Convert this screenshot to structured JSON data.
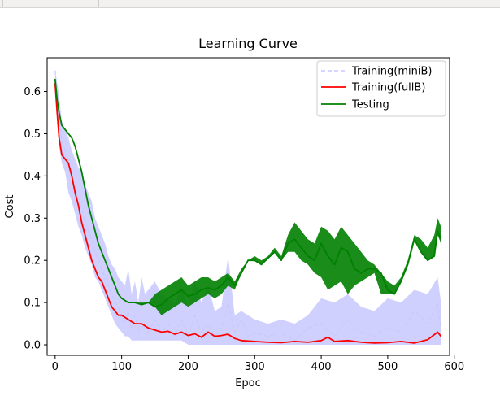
{
  "chart_data": {
    "type": "line",
    "title": "Learning Curve",
    "xlabel": "Epoc",
    "ylabel": "Cost",
    "xlim": [
      -12,
      593
    ],
    "ylim": [
      -0.025,
      0.68
    ],
    "xticks": [
      0,
      100,
      200,
      300,
      400,
      500,
      600
    ],
    "yticks": [
      0.0,
      0.1,
      0.2,
      0.3,
      0.4,
      0.5,
      0.6
    ],
    "xtick_labels": [
      "0",
      "100",
      "200",
      "300",
      "400",
      "500",
      "600"
    ],
    "ytick_labels": [
      "0.0",
      "0.1",
      "0.2",
      "0.3",
      "0.4",
      "0.5",
      "0.6"
    ],
    "grid": false,
    "legend_position": "top-right",
    "series": [
      {
        "name": "Training(miniB)",
        "color": "#c8c8ff",
        "style": "dashed",
        "x": [
          0,
          3,
          6,
          10,
          15,
          20,
          25,
          30,
          35,
          40,
          45,
          50,
          55,
          60,
          65,
          70,
          75,
          80,
          85,
          90,
          95,
          100,
          105,
          110,
          115,
          120,
          125,
          130,
          135,
          140,
          150,
          160,
          170,
          180,
          190,
          200,
          210,
          220,
          230,
          240,
          250,
          260,
          270,
          280,
          290,
          300,
          320,
          340,
          360,
          380,
          400,
          420,
          440,
          460,
          480,
          500,
          520,
          540,
          560,
          575,
          580
        ],
        "values": [
          0.65,
          0.6,
          0.55,
          0.48,
          0.46,
          0.44,
          0.4,
          0.37,
          0.35,
          0.32,
          0.29,
          0.27,
          0.25,
          0.22,
          0.2,
          0.18,
          0.16,
          0.14,
          0.12,
          0.1,
          0.09,
          0.06,
          0.05,
          0.08,
          0.04,
          0.07,
          0.03,
          0.05,
          0.04,
          0.03,
          0.06,
          0.03,
          0.05,
          0.02,
          0.06,
          0.02,
          0.07,
          0.03,
          0.05,
          0.02,
          0.04,
          0.1,
          0.03,
          0.06,
          0.02,
          0.03,
          0.02,
          0.03,
          0.01,
          0.04,
          0.05,
          0.02,
          0.06,
          0.03,
          0.02,
          0.04,
          0.03,
          0.08,
          0.05,
          0.1,
          0.04
        ],
        "band_lower": [
          0.6,
          0.54,
          0.47,
          0.43,
          0.41,
          0.36,
          0.34,
          0.31,
          0.28,
          0.26,
          0.23,
          0.21,
          0.19,
          0.16,
          0.15,
          0.13,
          0.11,
          0.09,
          0.07,
          0.05,
          0.04,
          0.03,
          0.02,
          0.02,
          0.01,
          0.01,
          0.01,
          0.01,
          0.01,
          0.01,
          0.01,
          0.01,
          0.01,
          0.01,
          0.01,
          0.0,
          0.0,
          0.0,
          0.0,
          0.0,
          0.0,
          0.0,
          0.0,
          0.0,
          0.0,
          0.0,
          0.0,
          0.0,
          0.0,
          0.0,
          0.0,
          0.0,
          0.0,
          0.0,
          0.0,
          0.0,
          0.0,
          0.0,
          0.0,
          0.0,
          0.0
        ],
        "band_upper": [
          0.65,
          0.62,
          0.59,
          0.53,
          0.51,
          0.49,
          0.46,
          0.44,
          0.42,
          0.41,
          0.38,
          0.36,
          0.34,
          0.3,
          0.28,
          0.26,
          0.24,
          0.21,
          0.19,
          0.18,
          0.16,
          0.15,
          0.14,
          0.18,
          0.12,
          0.15,
          0.1,
          0.16,
          0.12,
          0.13,
          0.15,
          0.12,
          0.11,
          0.1,
          0.13,
          0.09,
          0.15,
          0.1,
          0.14,
          0.08,
          0.09,
          0.21,
          0.07,
          0.08,
          0.07,
          0.06,
          0.05,
          0.06,
          0.05,
          0.07,
          0.11,
          0.1,
          0.12,
          0.09,
          0.08,
          0.11,
          0.1,
          0.13,
          0.12,
          0.16,
          0.1
        ]
      },
      {
        "name": "Training(fullB)",
        "color": "#ff0000",
        "style": "solid",
        "x": [
          0,
          3,
          6,
          10,
          15,
          20,
          25,
          30,
          35,
          40,
          45,
          50,
          55,
          60,
          65,
          70,
          75,
          80,
          85,
          90,
          95,
          100,
          110,
          120,
          130,
          140,
          150,
          160,
          170,
          180,
          190,
          200,
          210,
          220,
          230,
          240,
          250,
          260,
          270,
          280,
          300,
          320,
          340,
          360,
          380,
          400,
          410,
          420,
          440,
          460,
          480,
          500,
          520,
          540,
          560,
          575,
          580
        ],
        "values": [
          0.62,
          0.55,
          0.49,
          0.45,
          0.44,
          0.43,
          0.4,
          0.36,
          0.33,
          0.29,
          0.26,
          0.23,
          0.2,
          0.18,
          0.16,
          0.15,
          0.13,
          0.11,
          0.09,
          0.08,
          0.07,
          0.07,
          0.06,
          0.05,
          0.05,
          0.04,
          0.035,
          0.03,
          0.032,
          0.025,
          0.03,
          0.022,
          0.026,
          0.018,
          0.03,
          0.02,
          0.022,
          0.025,
          0.015,
          0.01,
          0.008,
          0.006,
          0.005,
          0.008,
          0.006,
          0.01,
          0.018,
          0.008,
          0.01,
          0.006,
          0.004,
          0.005,
          0.008,
          0.004,
          0.012,
          0.03,
          0.02
        ]
      },
      {
        "name": "Testing",
        "color": "#008000",
        "style": "solid",
        "x": [
          0,
          3,
          6,
          10,
          15,
          20,
          25,
          30,
          35,
          40,
          45,
          50,
          55,
          60,
          65,
          70,
          75,
          80,
          85,
          90,
          95,
          100,
          110,
          120,
          130,
          140,
          150,
          160,
          170,
          180,
          190,
          200,
          210,
          220,
          230,
          240,
          250,
          260,
          270,
          280,
          290,
          300,
          310,
          320,
          330,
          340,
          350,
          360,
          370,
          380,
          390,
          400,
          410,
          420,
          430,
          440,
          450,
          460,
          470,
          480,
          490,
          500,
          510,
          520,
          530,
          540,
          550,
          560,
          570,
          575,
          580
        ],
        "values": [
          0.63,
          0.58,
          0.55,
          0.52,
          0.51,
          0.5,
          0.49,
          0.47,
          0.44,
          0.41,
          0.37,
          0.33,
          0.3,
          0.27,
          0.24,
          0.22,
          0.2,
          0.18,
          0.16,
          0.14,
          0.12,
          0.11,
          0.1,
          0.1,
          0.095,
          0.1,
          0.09,
          0.095,
          0.11,
          0.12,
          0.13,
          0.115,
          0.12,
          0.13,
          0.135,
          0.13,
          0.14,
          0.16,
          0.14,
          0.17,
          0.2,
          0.2,
          0.19,
          0.205,
          0.22,
          0.2,
          0.24,
          0.25,
          0.23,
          0.21,
          0.2,
          0.24,
          0.21,
          0.19,
          0.23,
          0.22,
          0.18,
          0.17,
          0.18,
          0.18,
          0.17,
          0.13,
          0.12,
          0.15,
          0.19,
          0.25,
          0.22,
          0.2,
          0.21,
          0.27,
          0.25
        ],
        "band_lower": [
          0.63,
          0.58,
          0.55,
          0.52,
          0.51,
          0.5,
          0.49,
          0.47,
          0.44,
          0.41,
          0.37,
          0.33,
          0.3,
          0.27,
          0.24,
          0.22,
          0.2,
          0.18,
          0.16,
          0.14,
          0.12,
          0.11,
          0.1,
          0.1,
          0.095,
          0.1,
          0.09,
          0.07,
          0.08,
          0.09,
          0.1,
          0.09,
          0.1,
          0.11,
          0.12,
          0.11,
          0.12,
          0.14,
          0.13,
          0.17,
          0.2,
          0.2,
          0.19,
          0.205,
          0.22,
          0.2,
          0.22,
          0.22,
          0.2,
          0.19,
          0.17,
          0.16,
          0.13,
          0.14,
          0.15,
          0.12,
          0.14,
          0.15,
          0.16,
          0.17,
          0.12,
          0.12,
          0.12,
          0.15,
          0.19,
          0.25,
          0.22,
          0.2,
          0.21,
          0.26,
          0.24
        ],
        "band_upper": [
          0.63,
          0.58,
          0.55,
          0.52,
          0.51,
          0.5,
          0.49,
          0.47,
          0.44,
          0.41,
          0.37,
          0.33,
          0.3,
          0.27,
          0.24,
          0.22,
          0.2,
          0.18,
          0.16,
          0.14,
          0.12,
          0.11,
          0.1,
          0.1,
          0.1,
          0.1,
          0.12,
          0.13,
          0.14,
          0.15,
          0.16,
          0.14,
          0.15,
          0.16,
          0.16,
          0.15,
          0.16,
          0.17,
          0.15,
          0.18,
          0.2,
          0.21,
          0.2,
          0.21,
          0.23,
          0.21,
          0.26,
          0.29,
          0.27,
          0.25,
          0.24,
          0.28,
          0.27,
          0.25,
          0.28,
          0.26,
          0.24,
          0.22,
          0.2,
          0.19,
          0.17,
          0.15,
          0.14,
          0.16,
          0.2,
          0.26,
          0.25,
          0.23,
          0.26,
          0.3,
          0.28
        ]
      }
    ]
  }
}
